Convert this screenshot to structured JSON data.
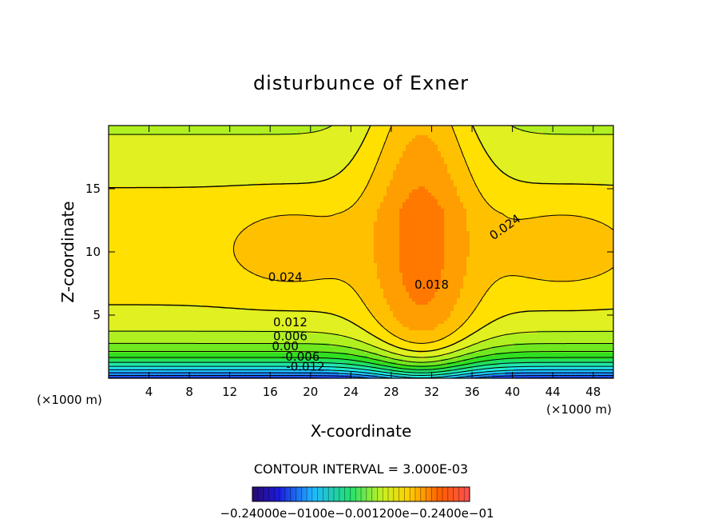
{
  "chart_data": {
    "type": "contour",
    "title": "disturbunce of Exner",
    "xlabel": "X-coordinate",
    "ylabel": "Z-coordinate",
    "x_unit": "(×1000 m)",
    "x_range": [
      0,
      50
    ],
    "y_range": [
      0,
      20
    ],
    "x_ticks": [
      "4",
      "8",
      "12",
      "16",
      "20",
      "24",
      "28",
      "32",
      "36",
      "40",
      "44",
      "48"
    ],
    "y_ticks": [
      "5",
      "10",
      "15"
    ],
    "contour_interval_label": "CONTOUR INTERVAL = 3.000E-03",
    "contour_labels": [
      {
        "text": "0.024",
        "x": 17.5,
        "y": 7.7
      },
      {
        "text": "0.024",
        "x": 39.5,
        "y": 11.7
      },
      {
        "text": "0.018",
        "x": 32.0,
        "y": 7.1
      },
      {
        "text": "0.012",
        "x": 18.0,
        "y": 4.1
      },
      {
        "text": "0.006",
        "x": 18.0,
        "y": 3.0
      },
      {
        "text": "0.00",
        "x": 17.5,
        "y": 2.2
      },
      {
        "text": "-0.006",
        "x": 19.0,
        "y": 1.4
      },
      {
        "text": "-0.012",
        "x": 19.5,
        "y": 0.6
      }
    ],
    "colorbar": {
      "labels_text": "−0.24000e−0100e−0.001200e−0.2400e−01"
    }
  }
}
